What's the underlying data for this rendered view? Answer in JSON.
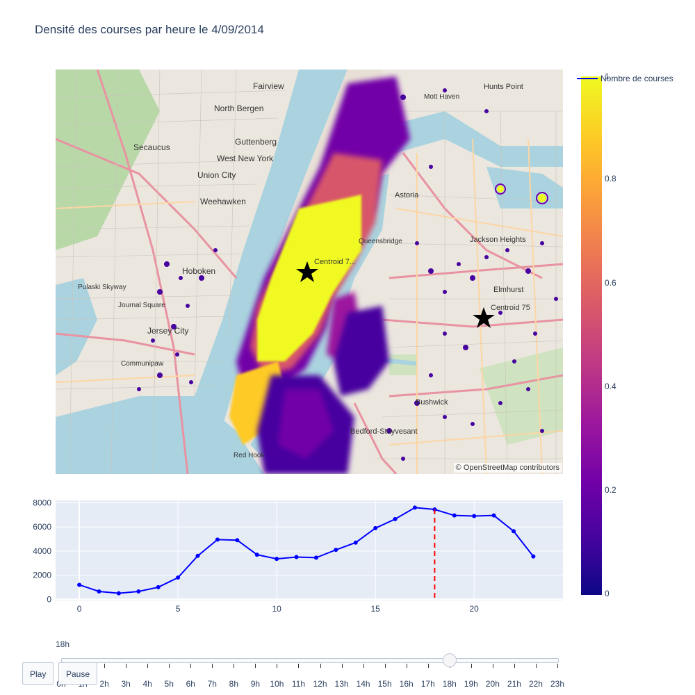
{
  "title": "Densité des courses par heure le 4/09/2014",
  "map": {
    "attribution": "© OpenStreetMap contributors",
    "centroids": [
      {
        "label": "Centroid 7..."
      },
      {
        "label": "Centroid 75"
      }
    ],
    "place_labels": [
      "Fairview",
      "North Bergen",
      "Secaucus",
      "Guttenberg",
      "West New York",
      "Union City",
      "Weehawken",
      "Hoboken",
      "Jersey City",
      "Journal Square",
      "Communipaw",
      "Pulaski Skyway",
      "Astoria",
      "Jackson Heights",
      "Elmhurst",
      "Bushwick",
      "Bedford-Stuyvesant",
      "Hunts Point",
      "Mott Haven",
      "Red Hook",
      "Queensbridge"
    ]
  },
  "colorbar": {
    "ticks": [
      "1",
      "0.8",
      "0.6",
      "0.4",
      "0.2",
      "0"
    ],
    "colors": [
      "#0d0887",
      "#46039f",
      "#7201a8",
      "#9c179e",
      "#bd3786",
      "#d8576b",
      "#ed7953",
      "#fb9f3a",
      "#fdca26",
      "#f0f921"
    ]
  },
  "legend": {
    "label": "Nombre de courses",
    "color": "#0000ff"
  },
  "chart_data": {
    "type": "line",
    "x": [
      0,
      1,
      2,
      3,
      4,
      5,
      6,
      7,
      8,
      9,
      10,
      11,
      12,
      13,
      14,
      15,
      16,
      17,
      18,
      19,
      20,
      21,
      22,
      23
    ],
    "series": [
      {
        "name": "Nombre de courses",
        "values": [
          1200,
          650,
          500,
          650,
          1000,
          1800,
          3600,
          4950,
          4900,
          3700,
          3350,
          3500,
          3450,
          4100,
          4700,
          5900,
          6650,
          7600,
          7450,
          6950,
          6900,
          6950,
          5650,
          3550
        ]
      }
    ],
    "x_ticks": [
      "0",
      "5",
      "10",
      "15",
      "20"
    ],
    "y_ticks": [
      "0",
      "2000",
      "4000",
      "6000",
      "8000"
    ],
    "xlim": [
      -1.2,
      24.5
    ],
    "ylim": [
      -100,
      8200
    ],
    "marker_x": 18,
    "line_color": "#0000ff",
    "marker_line_color": "#ff0000",
    "grid": true
  },
  "slider": {
    "current_label": "18h",
    "current_index": 18,
    "labels": [
      "0h",
      "1h",
      "2h",
      "3h",
      "4h",
      "5h",
      "6h",
      "7h",
      "8h",
      "9h",
      "10h",
      "11h",
      "12h",
      "13h",
      "14h",
      "15h",
      "16h",
      "17h",
      "18h",
      "19h",
      "20h",
      "21h",
      "22h",
      "23h"
    ],
    "play_label": "Play",
    "pause_label": "Pause"
  }
}
